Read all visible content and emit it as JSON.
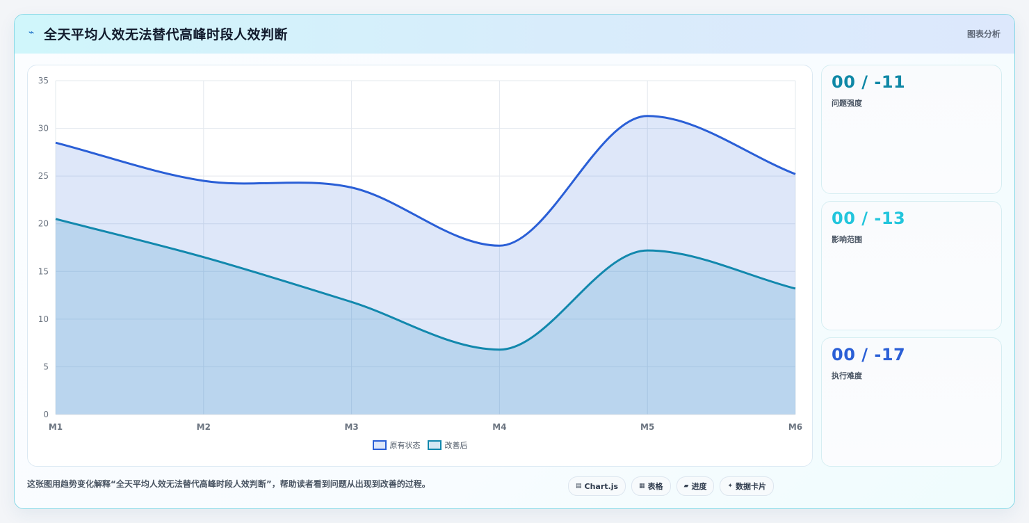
{
  "header": {
    "title": "全天平均人效无法替代高峰时段人效判断",
    "tag": "图表分析",
    "icon": "lightning-icon"
  },
  "stats": [
    {
      "value": "00 / -11",
      "label": "问题强度",
      "color": "#0f88a6"
    },
    {
      "value": "00 / -13",
      "label": "影响范围",
      "color": "#22c5dc"
    },
    {
      "value": "00 / -17",
      "label": "执行难度",
      "color": "#2a5fd6"
    }
  ],
  "footer": {
    "text": "这张图用趋势变化解释“全天平均人效无法替代高峰时段人效判断”，帮助读者看到问题从出现到改善的过程。",
    "chips": [
      {
        "icon": "chart-icon",
        "glyph": "▤",
        "label": "Chart.js"
      },
      {
        "icon": "table-icon",
        "glyph": "▦",
        "label": "表格"
      },
      {
        "icon": "progress-icon",
        "glyph": "▰",
        "label": "进度"
      },
      {
        "icon": "card-icon",
        "glyph": "✦",
        "label": "数据卡片"
      }
    ]
  },
  "chart_data": {
    "type": "area",
    "categories": [
      "M1",
      "M2",
      "M3",
      "M4",
      "M5",
      "M6"
    ],
    "series": [
      {
        "name": "原有状态",
        "values": [
          28.5,
          24.5,
          23.8,
          17.7,
          31.3,
          25.2
        ],
        "color": "#2a5fd6",
        "fill": "rgba(60,110,220,0.17)"
      },
      {
        "name": "改善后",
        "values": [
          20.5,
          16.5,
          11.8,
          6.8,
          17.2,
          13.2
        ],
        "color": "#1288ad",
        "fill": "rgba(60,150,200,0.22)"
      }
    ],
    "ylim": [
      0,
      35
    ],
    "yticks": [
      0,
      5,
      10,
      15,
      20,
      25,
      30,
      35
    ],
    "grid": true,
    "legend": "bottom"
  }
}
